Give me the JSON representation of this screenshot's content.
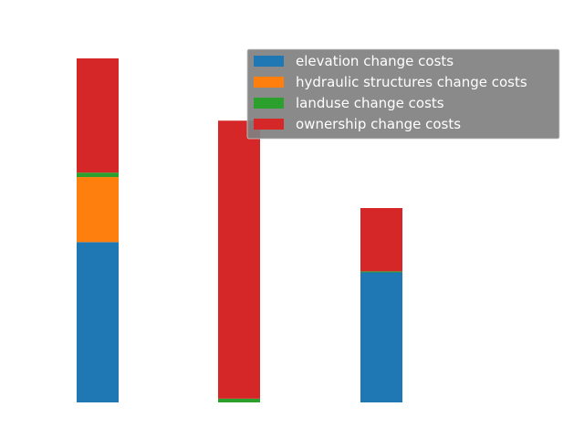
{
  "chart_data": {
    "type": "bar",
    "stacked": true,
    "categories": [
      "",
      "",
      ""
    ],
    "series": [
      {
        "name": "elevation change costs",
        "color": "#1f77b4",
        "values": [
          0.466,
          0.0,
          0.378
        ]
      },
      {
        "name": "hydraulic structures change costs",
        "color": "#ff7f0e",
        "values": [
          0.189,
          0.0,
          0.0
        ]
      },
      {
        "name": "landuse change costs",
        "color": "#2ca02c",
        "values": [
          0.013,
          0.011,
          0.003
        ]
      },
      {
        "name": "ownership change costs",
        "color": "#d62728",
        "values": [
          0.332,
          0.808,
          0.184
        ]
      }
    ],
    "ylim": [
      0,
      1.0
    ],
    "axes_visible": false,
    "grid": false,
    "legend": {
      "placement": "upper-right",
      "background": "#808080"
    }
  }
}
